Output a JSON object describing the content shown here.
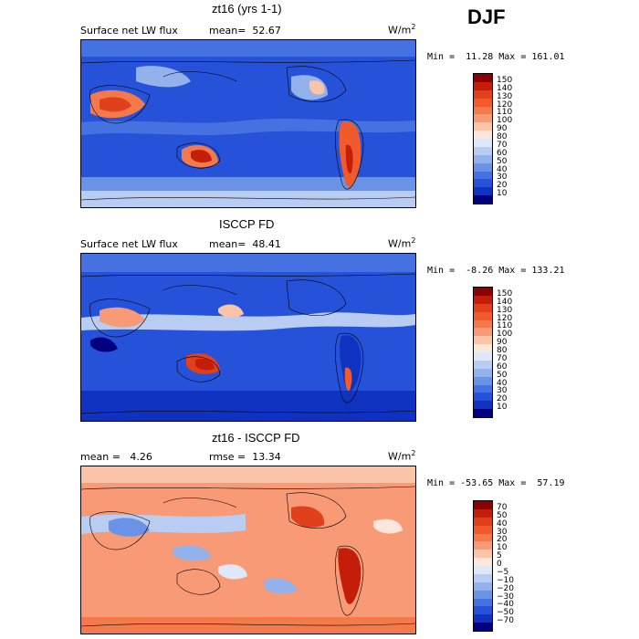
{
  "season": "DJF",
  "unit": "W/m",
  "unit_exp": "2",
  "panels": [
    {
      "title": "zt16 (yrs 1-1)",
      "left_label": "Surface net LW flux",
      "right_label": "mean=  52.67",
      "minmax": "Min =  11.28 Max = 161.01",
      "levels": [
        "150",
        "140",
        "130",
        "120",
        "110",
        "100",
        "90",
        "80",
        "70",
        "60",
        "50",
        "40",
        "30",
        "20",
        "10"
      ],
      "colors": [
        "#8b0000",
        "#c41e0a",
        "#e0401c",
        "#f05a2c",
        "#f47a4c",
        "#f89a76",
        "#fbc3a8",
        "#fde6da",
        "#dfe8f8",
        "#b9cdf2",
        "#93b2ec",
        "#6a92e6",
        "#4572e0",
        "#2552d8",
        "#0f33c0",
        "#00007f"
      ]
    },
    {
      "title": "ISCCP FD",
      "left_label": "Surface net LW flux",
      "right_label": "mean=  48.41",
      "minmax": "Min =  -8.26 Max = 133.21",
      "levels": [
        "150",
        "140",
        "130",
        "120",
        "110",
        "100",
        "90",
        "80",
        "70",
        "60",
        "50",
        "40",
        "30",
        "20",
        "10"
      ],
      "colors": [
        "#8b0000",
        "#c41e0a",
        "#e0401c",
        "#f05a2c",
        "#f47a4c",
        "#f89a76",
        "#fbc3a8",
        "#fde6da",
        "#dfe8f8",
        "#b9cdf2",
        "#93b2ec",
        "#6a92e6",
        "#4572e0",
        "#2552d8",
        "#0f33c0",
        "#00007f"
      ]
    },
    {
      "title": "zt16 - ISCCP FD",
      "left_label": "mean =   4.26",
      "right_label": "rmse =  13.34",
      "minmax": "Min = -53.65 Max =  57.19",
      "levels": [
        "70",
        "50",
        "40",
        "30",
        "20",
        "10",
        "5",
        "0",
        "−5",
        "−10",
        "−20",
        "−30",
        "−40",
        "−50",
        "−70"
      ],
      "colors": [
        "#8b0000",
        "#c41e0a",
        "#e0401c",
        "#f05a2c",
        "#f47a4c",
        "#f89a76",
        "#fbc3a8",
        "#fde6da",
        "#dfe8f8",
        "#b9cdf2",
        "#93b2ec",
        "#6a92e6",
        "#4572e0",
        "#2552d8",
        "#0f33c0",
        "#00007f"
      ]
    }
  ]
}
